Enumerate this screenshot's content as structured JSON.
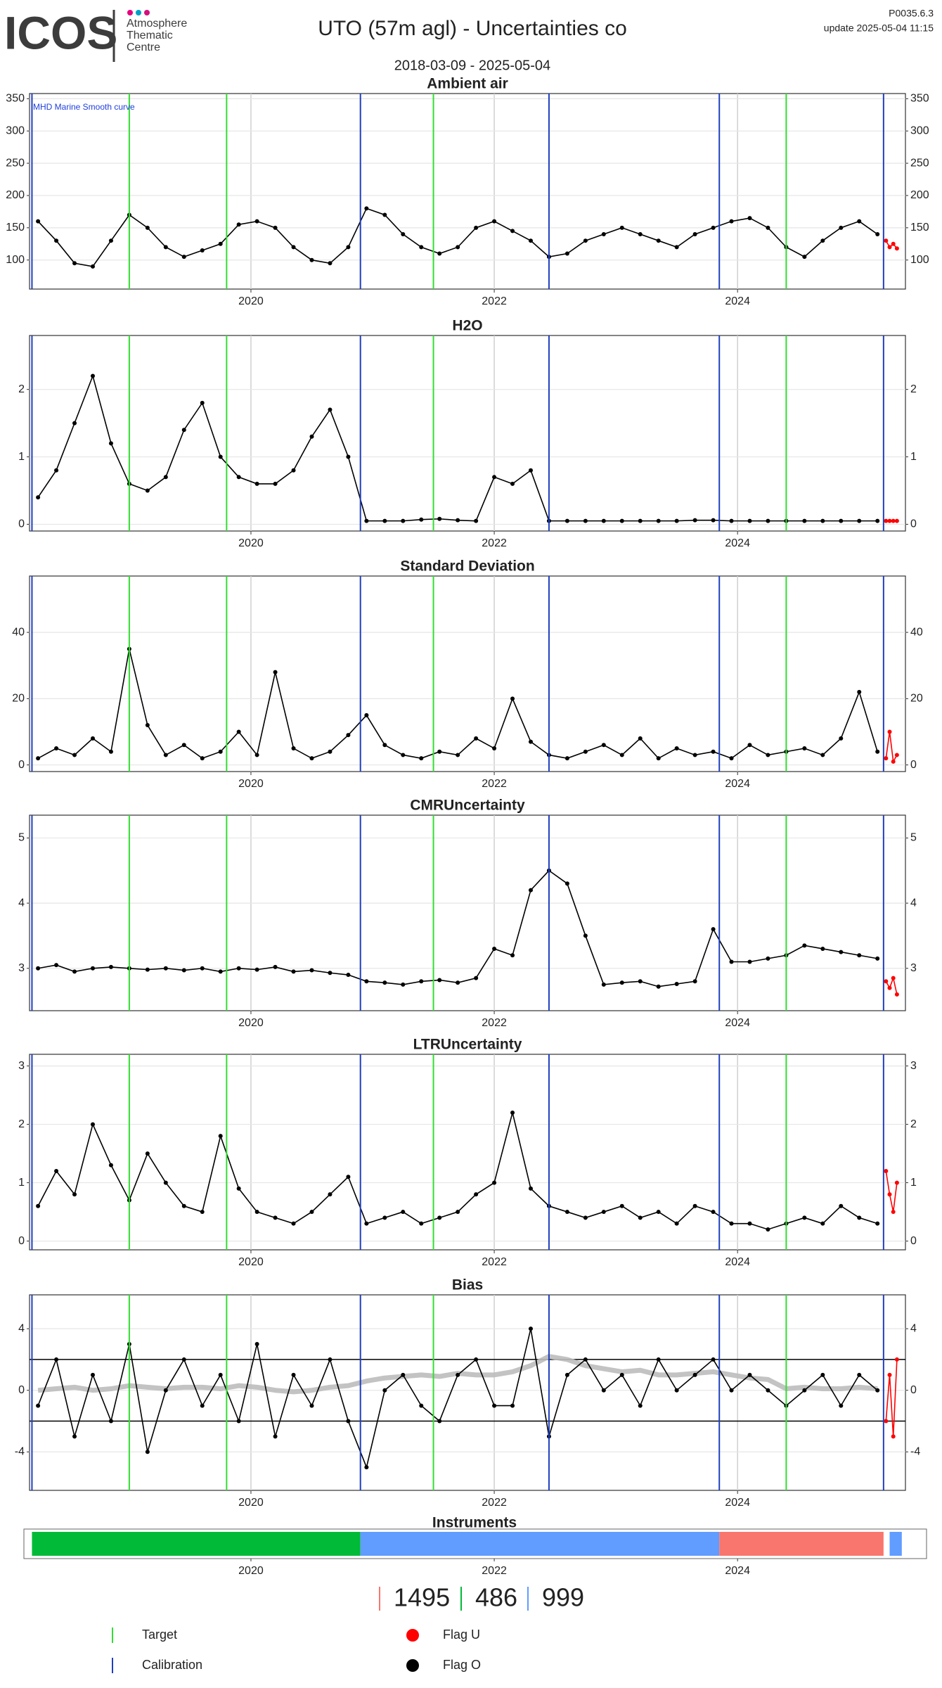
{
  "header": {
    "logo": "ICOS",
    "logo_sub": [
      "Atmosphere",
      "Thematic",
      "Centre"
    ],
    "title": "UTO  (57m agl) - Uncertainties co",
    "code": "P0035.6.3",
    "update": "update  2025-05-04 11:15",
    "date_range": "2018-03-09 - 2025-05-04"
  },
  "events": [
    {
      "name": "Target",
      "color": "#33dd33",
      "x": [
        2019.0,
        2019.8,
        2021.5,
        2024.4
      ]
    },
    {
      "name": "Calibration",
      "color": "#1f3fbf",
      "x": [
        2018.2,
        2020.9,
        2022.45,
        2023.85,
        2025.2
      ]
    }
  ],
  "chart_data": [
    {
      "type": "scatter",
      "title": "Ambient air",
      "annotation": "MHD Marine Smooth curve",
      "annotation_color": "#1f3fdf",
      "xlim": [
        2018.18,
        2025.38
      ],
      "xticks": [
        2020,
        2022,
        2024
      ],
      "ylim": [
        55,
        358
      ],
      "yticks": [
        100,
        150,
        200,
        250,
        300,
        350
      ],
      "grid": true,
      "x": [
        2018.25,
        2018.4,
        2018.55,
        2018.7,
        2018.85,
        2019,
        2019.15,
        2019.3,
        2019.45,
        2019.6,
        2019.75,
        2019.9,
        2020.05,
        2020.2,
        2020.35,
        2020.5,
        2020.65,
        2020.8,
        2020.95,
        2021.1,
        2021.25,
        2021.4,
        2021.55,
        2021.7,
        2021.85,
        2022,
        2022.15,
        2022.3,
        2022.45,
        2022.6,
        2022.75,
        2022.9,
        2023.05,
        2023.2,
        2023.35,
        2023.5,
        2023.65,
        2023.8,
        2023.95,
        2024.1,
        2024.25,
        2024.4,
        2024.55,
        2024.7,
        2024.85,
        2025,
        2025.15
      ],
      "series": [
        {
          "name": "Flag O",
          "color": "#000000",
          "values": [
            160,
            130,
            95,
            90,
            130,
            170,
            150,
            120,
            105,
            115,
            125,
            155,
            160,
            150,
            120,
            100,
            95,
            120,
            180,
            170,
            140,
            120,
            110,
            120,
            150,
            160,
            145,
            130,
            105,
            110,
            130,
            140,
            150,
            140,
            130,
            120,
            140,
            150,
            160,
            165,
            150,
            120,
            105,
            130,
            150,
            160,
            140
          ]
        },
        {
          "name": "Flag U",
          "color": "#ff0000",
          "x": [
            2025.22,
            2025.25,
            2025.28,
            2025.31
          ],
          "values": [
            130,
            120,
            125,
            118
          ]
        }
      ]
    },
    {
      "type": "scatter",
      "title": "H2O",
      "xlim": [
        2018.18,
        2025.38
      ],
      "xticks": [
        2020,
        2022,
        2024
      ],
      "ylim": [
        -0.1,
        2.8
      ],
      "yticks": [
        0,
        1,
        2
      ],
      "grid": true,
      "x": [
        2018.25,
        2018.4,
        2018.55,
        2018.7,
        2018.85,
        2019,
        2019.15,
        2019.3,
        2019.45,
        2019.6,
        2019.75,
        2019.9,
        2020.05,
        2020.2,
        2020.35,
        2020.5,
        2020.65,
        2020.8,
        2020.95,
        2021.1,
        2021.25,
        2021.4,
        2021.55,
        2021.7,
        2021.85,
        2022,
        2022.15,
        2022.3,
        2022.45,
        2022.6,
        2022.75,
        2022.9,
        2023.05,
        2023.2,
        2023.35,
        2023.5,
        2023.65,
        2023.8,
        2023.95,
        2024.1,
        2024.25,
        2024.4,
        2024.55,
        2024.7,
        2024.85,
        2025,
        2025.15
      ],
      "series": [
        {
          "color": "#000000",
          "values": [
            0.4,
            0.8,
            1.5,
            2.2,
            1.2,
            0.6,
            0.5,
            0.7,
            1.4,
            1.8,
            1.0,
            0.7,
            0.6,
            0.6,
            0.8,
            1.3,
            1.7,
            1.0,
            0.05,
            0.05,
            0.05,
            0.07,
            0.08,
            0.06,
            0.05,
            0.7,
            0.6,
            0.8,
            0.05,
            0.05,
            0.05,
            0.05,
            0.05,
            0.05,
            0.05,
            0.05,
            0.06,
            0.06,
            0.05,
            0.05,
            0.05,
            0.05,
            0.05,
            0.05,
            0.05,
            0.05,
            0.05
          ]
        },
        {
          "color": "#ff0000",
          "x": [
            2025.22,
            2025.25,
            2025.28,
            2025.31
          ],
          "values": [
            0.05,
            0.05,
            0.05,
            0.05
          ]
        }
      ]
    },
    {
      "type": "scatter",
      "title": "Standard Deviation",
      "xlim": [
        2018.18,
        2025.38
      ],
      "xticks": [
        2020,
        2022,
        2024
      ],
      "ylim": [
        -2,
        57
      ],
      "yticks": [
        0,
        20,
        40
      ],
      "grid": true,
      "x": [
        2018.25,
        2018.4,
        2018.55,
        2018.7,
        2018.85,
        2019,
        2019.15,
        2019.3,
        2019.45,
        2019.6,
        2019.75,
        2019.9,
        2020.05,
        2020.2,
        2020.35,
        2020.5,
        2020.65,
        2020.8,
        2020.95,
        2021.1,
        2021.25,
        2021.4,
        2021.55,
        2021.7,
        2021.85,
        2022,
        2022.15,
        2022.3,
        2022.45,
        2022.6,
        2022.75,
        2022.9,
        2023.05,
        2023.2,
        2023.35,
        2023.5,
        2023.65,
        2023.8,
        2023.95,
        2024.1,
        2024.25,
        2024.4,
        2024.55,
        2024.7,
        2024.85,
        2025,
        2025.15
      ],
      "series": [
        {
          "color": "#000000",
          "values": [
            2,
            5,
            3,
            8,
            4,
            35,
            12,
            3,
            6,
            2,
            4,
            10,
            3,
            28,
            5,
            2,
            4,
            9,
            15,
            6,
            3,
            2,
            4,
            3,
            8,
            5,
            20,
            7,
            3,
            2,
            4,
            6,
            3,
            8,
            2,
            5,
            3,
            4,
            2,
            6,
            3,
            4,
            5,
            3,
            8,
            22,
            4
          ]
        },
        {
          "color": "#ff0000",
          "x": [
            2025.22,
            2025.25,
            2025.28,
            2025.31
          ],
          "values": [
            2,
            10,
            1,
            3
          ]
        }
      ]
    },
    {
      "type": "scatter",
      "title": "CMRUncertainty",
      "xlim": [
        2018.18,
        2025.38
      ],
      "xticks": [
        2020,
        2022,
        2024
      ],
      "ylim": [
        2.35,
        5.35
      ],
      "yticks": [
        3,
        4,
        5
      ],
      "grid": true,
      "x": [
        2018.25,
        2018.4,
        2018.55,
        2018.7,
        2018.85,
        2019,
        2019.15,
        2019.3,
        2019.45,
        2019.6,
        2019.75,
        2019.9,
        2020.05,
        2020.2,
        2020.35,
        2020.5,
        2020.65,
        2020.8,
        2020.95,
        2021.1,
        2021.25,
        2021.4,
        2021.55,
        2021.7,
        2021.85,
        2022,
        2022.15,
        2022.3,
        2022.45,
        2022.6,
        2022.75,
        2022.9,
        2023.05,
        2023.2,
        2023.35,
        2023.5,
        2023.65,
        2023.8,
        2023.95,
        2024.1,
        2024.25,
        2024.4,
        2024.55,
        2024.7,
        2024.85,
        2025,
        2025.15
      ],
      "series": [
        {
          "color": "#000000",
          "values": [
            3.0,
            3.05,
            2.95,
            3.0,
            3.02,
            3.0,
            2.98,
            3.0,
            2.97,
            3.0,
            2.95,
            3.0,
            2.98,
            3.02,
            2.95,
            2.97,
            2.93,
            2.9,
            2.8,
            2.78,
            2.75,
            2.8,
            2.82,
            2.78,
            2.85,
            3.3,
            3.2,
            4.2,
            4.5,
            4.3,
            3.5,
            2.75,
            2.78,
            2.8,
            2.72,
            2.76,
            2.8,
            3.6,
            3.1,
            3.1,
            3.15,
            3.2,
            3.35,
            3.3,
            3.25,
            3.2,
            3.15
          ]
        },
        {
          "color": "#ff0000",
          "x": [
            2025.22,
            2025.25,
            2025.28,
            2025.31
          ],
          "values": [
            2.8,
            2.7,
            2.85,
            2.6
          ]
        }
      ]
    },
    {
      "type": "scatter",
      "title": "LTRUncertainty",
      "xlim": [
        2018.18,
        2025.38
      ],
      "xticks": [
        2020,
        2022,
        2024
      ],
      "ylim": [
        -0.15,
        3.2
      ],
      "yticks": [
        0,
        1,
        2,
        3
      ],
      "grid": true,
      "x": [
        2018.25,
        2018.4,
        2018.55,
        2018.7,
        2018.85,
        2019,
        2019.15,
        2019.3,
        2019.45,
        2019.6,
        2019.75,
        2019.9,
        2020.05,
        2020.2,
        2020.35,
        2020.5,
        2020.65,
        2020.8,
        2020.95,
        2021.1,
        2021.25,
        2021.4,
        2021.55,
        2021.7,
        2021.85,
        2022,
        2022.15,
        2022.3,
        2022.45,
        2022.6,
        2022.75,
        2022.9,
        2023.05,
        2023.2,
        2023.35,
        2023.5,
        2023.65,
        2023.8,
        2023.95,
        2024.1,
        2024.25,
        2024.4,
        2024.55,
        2024.7,
        2024.85,
        2025,
        2025.15
      ],
      "series": [
        {
          "color": "#000000",
          "values": [
            0.6,
            1.2,
            0.8,
            2.0,
            1.3,
            0.7,
            1.5,
            1.0,
            0.6,
            0.5,
            1.8,
            0.9,
            0.5,
            0.4,
            0.3,
            0.5,
            0.8,
            1.1,
            0.3,
            0.4,
            0.5,
            0.3,
            0.4,
            0.5,
            0.8,
            1.0,
            2.2,
            0.9,
            0.6,
            0.5,
            0.4,
            0.5,
            0.6,
            0.4,
            0.5,
            0.3,
            0.6,
            0.5,
            0.3,
            0.3,
            0.2,
            0.3,
            0.4,
            0.3,
            0.6,
            0.4,
            0.3
          ]
        },
        {
          "color": "#ff0000",
          "x": [
            2025.22,
            2025.25,
            2025.28,
            2025.31
          ],
          "values": [
            1.2,
            0.8,
            0.5,
            1.0
          ]
        }
      ]
    },
    {
      "type": "scatter",
      "title": "Bias",
      "xlim": [
        2018.18,
        2025.38
      ],
      "xticks": [
        2020,
        2022,
        2024
      ],
      "ylim": [
        -6.5,
        6.2
      ],
      "yticks": [
        -4,
        0,
        4
      ],
      "grid": true,
      "hlines": [
        -2,
        2
      ],
      "x": [
        2018.25,
        2018.4,
        2018.55,
        2018.7,
        2018.85,
        2019,
        2019.15,
        2019.3,
        2019.45,
        2019.6,
        2019.75,
        2019.9,
        2020.05,
        2020.2,
        2020.35,
        2020.5,
        2020.65,
        2020.8,
        2020.95,
        2021.1,
        2021.25,
        2021.4,
        2021.55,
        2021.7,
        2021.85,
        2022,
        2022.15,
        2022.3,
        2022.45,
        2022.6,
        2022.75,
        2022.9,
        2023.05,
        2023.2,
        2023.35,
        2023.5,
        2023.65,
        2023.8,
        2023.95,
        2024.1,
        2024.25,
        2024.4,
        2024.55,
        2024.7,
        2024.85,
        2025,
        2025.15
      ],
      "reference_line": {
        "color": "#bdbdbd",
        "values": [
          0,
          0.1,
          0.2,
          0,
          0.1,
          0.3,
          0.2,
          0.1,
          0.2,
          0.2,
          0.1,
          0.3,
          0.2,
          0,
          -0.1,
          0,
          0.2,
          0.3,
          0.6,
          0.8,
          0.9,
          1.0,
          0.9,
          1.1,
          1.0,
          1.0,
          1.2,
          1.6,
          2.2,
          2.0,
          1.6,
          1.4,
          1.2,
          1.3,
          1.0,
          1.0,
          1.1,
          1.2,
          1.0,
          0.8,
          0.7,
          0.1,
          0.2,
          0.1,
          0.1,
          0.2,
          0.1
        ]
      },
      "series": [
        {
          "color": "#000000",
          "values": [
            -1,
            2,
            -3,
            1,
            -2,
            3,
            -4,
            0,
            2,
            -1,
            1,
            -2,
            3,
            -3,
            1,
            -1,
            2,
            -2,
            -5,
            0,
            1,
            -1,
            -2,
            1,
            2,
            -1,
            -1,
            4,
            -3,
            1,
            2,
            0,
            1,
            -1,
            2,
            0,
            1,
            2,
            0,
            1,
            0,
            -1,
            0,
            1,
            -1,
            1,
            0
          ]
        },
        {
          "color": "#ff0000",
          "x": [
            2025.22,
            2025.25,
            2025.28,
            2025.31
          ],
          "values": [
            -2,
            1,
            -3,
            2
          ]
        }
      ]
    },
    {
      "type": "timeline",
      "title": "Instruments",
      "xlim": [
        2018.18,
        2025.38
      ],
      "xticks": [
        2020,
        2022,
        2024
      ],
      "segments": [
        {
          "start": 2018.2,
          "end": 2020.9,
          "color": "#00ba38"
        },
        {
          "start": 2020.9,
          "end": 2023.85,
          "color": "#619cff"
        },
        {
          "start": 2023.85,
          "end": 2025.2,
          "color": "#f8766d"
        },
        {
          "start": 2025.25,
          "end": 2025.35,
          "color": "#619cff"
        }
      ],
      "ids": [
        {
          "label": "1495",
          "color": "#f8766d"
        },
        {
          "label": "486",
          "color": "#00ba38"
        },
        {
          "label": "999",
          "color": "#619cff"
        }
      ]
    }
  ]
}
